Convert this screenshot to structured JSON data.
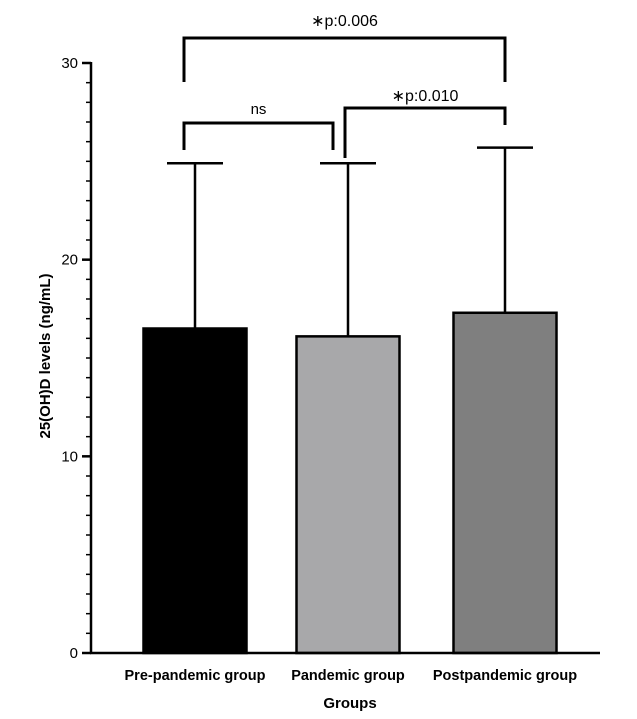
{
  "chart_data": {
    "type": "bar",
    "title": "",
    "xlabel": "Groups",
    "ylabel": "25(OH)D levels (ng/mL)",
    "ylim": [
      0,
      30
    ],
    "yticks": [
      0,
      10,
      20,
      30
    ],
    "minor_tick_step": 1,
    "grid": false,
    "categories": [
      "Pre-pandemic group",
      "Pandemic group",
      "Postpandemic group"
    ],
    "values": [
      16.5,
      16.1,
      17.3
    ],
    "error_upper": [
      24.9,
      24.9,
      25.7
    ],
    "colors": [
      "#000000",
      "#a8a8aa",
      "#7f7f7f"
    ],
    "comparisons": [
      {
        "from": 0,
        "to": 1,
        "label": "ns"
      },
      {
        "from": 1,
        "to": 2,
        "label": "∗p:0.010"
      },
      {
        "from": 0,
        "to": 2,
        "label": "∗p:0.006"
      }
    ]
  }
}
